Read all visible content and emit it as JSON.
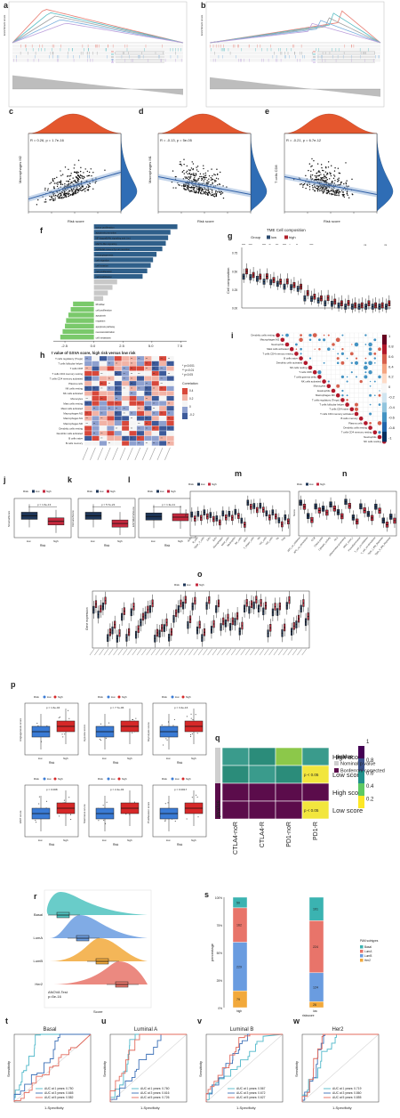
{
  "figure": {
    "panel_letters": {
      "a": "a",
      "b": "b",
      "c": "c",
      "d": "d",
      "e": "e",
      "f": "f",
      "g": "g",
      "h": "h",
      "i": "i",
      "j": "j",
      "k": "k",
      "l": "l",
      "m": "m",
      "n": "n",
      "o": "o",
      "p": "p",
      "q": "q",
      "r": "r",
      "s": "s",
      "t": "t",
      "u": "u",
      "v": "v",
      "w": "w"
    }
  },
  "chart_data": [
    {
      "id": "a",
      "type": "line",
      "title": "",
      "ylabel": "Enrichment score",
      "series_colors": [
        "#e87d72",
        "#56bcc2",
        "#a0a0a0",
        "#7ab0dd",
        "#bca0dc"
      ],
      "pathways_count": 5
    },
    {
      "id": "b",
      "type": "line",
      "title": "",
      "ylabel": "Enrichment score",
      "series_colors": [
        "#e87d72",
        "#56bcc2",
        "#a0a0a0",
        "#7ab0dd",
        "#bca0dc"
      ],
      "pathways_count": 5
    },
    {
      "id": "c",
      "type": "scatter",
      "annotation": "R = 0.26, p = 1.7e-16",
      "xlabel": "Risk score",
      "ylabel": "Macrophages M2",
      "trend": "positive",
      "xlim": [
        -3,
        4
      ],
      "ylim": [
        0,
        1
      ]
    },
    {
      "id": "d",
      "type": "scatter",
      "annotation": "R = -0.13, p = 5e-05",
      "xlabel": "Risk score",
      "ylabel": "Macrophages M1",
      "trend": "negative",
      "xlim": [
        -3,
        4
      ],
      "ylim": [
        0,
        1
      ]
    },
    {
      "id": "e",
      "type": "scatter",
      "annotation": "R = -0.21, p = 6.7e-12",
      "xlabel": "Risk score",
      "ylabel": "T cells CD8",
      "trend": "negative",
      "xlim": [
        -3,
        4
      ],
      "ylim": [
        0,
        1
      ]
    },
    {
      "id": "f",
      "type": "bar",
      "xlabel": "t value of GSVA score, high risk versus low risk",
      "xticks": [
        "-2.5",
        "0.0",
        "2.5",
        "5.0",
        "7.5"
      ],
      "xlim": [
        -3.5,
        8
      ],
      "categories": [
        "tumor proliferation",
        "apoptosis promotion",
        "NF-kappaB/Akt signaling and (i.e.)",
        "MET/c-Met signaling",
        "epithelial-mesenchymal transition",
        "neoangiogenesis",
        "cell migration",
        "cell invasion",
        "cell proliferation",
        "cell stabilization",
        "",
        "",
        "",
        "",
        "Rho/Rac",
        "cell proliferation",
        "apoptosis",
        "migration",
        "apoptosis pathway",
        "neovascularization",
        "cell metastasis"
      ],
      "values": [
        7.2,
        6.6,
        6.4,
        6.2,
        5.9,
        5.4,
        5.1,
        4.9,
        4.6,
        4.2,
        2.0,
        1.6,
        1.2,
        0.8,
        -1.8,
        -2.0,
        -2.2,
        -2.4,
        -2.5,
        -2.7,
        -2.9
      ],
      "bar_colors": {
        "up": "#2f5f8a",
        "neutral": "#c8c8c8",
        "down": "#7ac96b"
      }
    },
    {
      "id": "g",
      "type": "bar",
      "title": "TME Cell composition",
      "legend_title": "Group",
      "legend": [
        "low",
        "high"
      ],
      "colors": [
        "#2b4a6f",
        "#b0202a"
      ],
      "ylabel": "Cell composition",
      "yticks": [
        "0.00",
        "0.25",
        "0.50",
        "0.75"
      ],
      "categories_count": 22,
      "signif": [
        "****",
        "****",
        "",
        "****",
        "**",
        "***",
        "****",
        "*",
        "**",
        "",
        "****",
        "",
        "",
        "",
        "",
        "",
        "",
        "",
        "ns",
        "",
        "",
        "ns"
      ]
    },
    {
      "id": "h",
      "type": "heatmap",
      "rows": [
        "T cells regulatory (Tregs)",
        "T cells follicular helper",
        "T cells CD8",
        "T cells CD4 memory resting",
        "T cells CD4 memory activated",
        "Plasma cells",
        "NK cells resting",
        "NK cells activated",
        "Monocytes",
        "Mast cells resting",
        "Mast cells activated",
        "Macrophages M2",
        "Macrophages M1",
        "Macrophages M0",
        "Dendritic cells resting",
        "Dendritic cells activated",
        "B cells naive",
        "B cells memory"
      ],
      "cols_count": 12,
      "legend_title": "Correlation",
      "legend_ticks": [
        "0.4",
        "0.2",
        "0",
        "-0.2"
      ],
      "sig_legend": [
        "* p<0.001",
        "** p<0.01",
        "* p<0.05"
      ]
    },
    {
      "id": "i",
      "type": "heatmap",
      "labels": [
        "Dendritic cells resting",
        "Macrophages M2",
        "Neutrophils",
        "Mast cells activated",
        "T cells CD4 memory resting",
        "B cells naive",
        "Dendritic cells activated",
        "NK cells resting",
        "T cells CD8",
        "T cells gamma delta",
        "NK cells activated",
        "Monocytes",
        "Eosinophils",
        "Macrophages M0",
        "T cells regulatory (Tregs)",
        "T cells follicular helper",
        "T cells CD4 naive",
        "T cells CD4 memory activated",
        "B cells memory",
        "Plasma cells",
        "Dendritic cells resting",
        "T cells CD4 memory resting",
        "Neutrophils",
        "NK cells resting"
      ],
      "colorbar": [
        "1",
        "0.8",
        "0.6",
        "0.4",
        "0.2",
        "0",
        "-0.2",
        "-0.4",
        "-0.6",
        "-0.8",
        "-1"
      ]
    },
    {
      "id": "j",
      "type": "bar",
      "legend_title": "Risk",
      "legend": [
        "low",
        "high"
      ],
      "colors": [
        "#1d3557",
        "#c5283d"
      ],
      "categories": [
        "low",
        "high"
      ],
      "xlabel": "Risk",
      "ylabel": "StromalScore",
      "pvalue": "1.6e-13",
      "medians": [
        0.62,
        0.46
      ]
    },
    {
      "id": "k",
      "type": "bar",
      "legend_title": "Risk",
      "legend": [
        "low",
        "high"
      ],
      "colors": [
        "#1d3557",
        "#c5283d"
      ],
      "categories": [
        "low",
        "high"
      ],
      "xlabel": "Risk",
      "ylabel": "ImmuneScore",
      "pvalue": "5.7e-22",
      "medians": [
        0.62,
        0.4
      ]
    },
    {
      "id": "l",
      "type": "bar",
      "legend_title": "Risk",
      "legend": [
        "low",
        "high"
      ],
      "colors": [
        "#1d3557",
        "#c5283d"
      ],
      "categories": [
        "low",
        "high"
      ],
      "xlabel": "Risk",
      "ylabel": "ESTIMATEScore",
      "pvalue": "1.3e-11",
      "medians": [
        0.6,
        0.58
      ]
    },
    {
      "id": "m",
      "type": "bar",
      "legend_title": "Risk",
      "legend": [
        "low",
        "high"
      ],
      "colors": [
        "#1d3557",
        "#c5283d"
      ],
      "ylabel": "Score",
      "categories": [
        "aDCs",
        "B_cells",
        "CD8+_T_cells",
        "DCs",
        "iDCs",
        "Macrophages",
        "Mast_cells",
        "Neutrophils",
        "NK_cells",
        "pDCs",
        "T_helper_cells",
        "Tfh",
        "Th1_cells",
        "Th2_cells",
        "TIL",
        "Treg"
      ]
    },
    {
      "id": "n",
      "type": "bar",
      "legend_title": "Risk",
      "legend": [
        "low",
        "high"
      ],
      "colors": [
        "#1d3557",
        "#c5283d"
      ],
      "ylabel": "Score",
      "categories": [
        "APC_co_inhibition",
        "APC_co_stimulation",
        "CCR",
        "Check-point",
        "Cytolytic_activity",
        "HLA",
        "Inflammation-promoting",
        "MHC_class_I",
        "Parainflammation",
        "T_cell_co-inhibition",
        "T_cell_co-stimulation",
        "Type_I_IFN_Reponse",
        "Type_II_IFN_Reponse"
      ]
    },
    {
      "id": "o",
      "type": "bar",
      "legend_title": "Risk",
      "legend": [
        "low",
        "high"
      ],
      "colors": [
        "#1d3557",
        "#c5283d"
      ],
      "ylabel": "Gene expression",
      "categories_count": 46
    },
    {
      "id": "p",
      "type": "bar",
      "subpanels": [
        {
          "ylabel": "Angiogenesis score",
          "pvalue": "1.6e-04"
        },
        {
          "ylabel": "Hypoxia score",
          "pvalue": "7.7e-06"
        },
        {
          "ylabel": "Glycolysis score",
          "pvalue": "3.4e-16"
        },
        {
          "ylabel": "EMT score",
          "pvalue": "0.008"
        },
        {
          "ylabel": "Stemness score",
          "pvalue": "2.4e-03"
        },
        {
          "ylabel": "Proliferation score",
          "pvalue": "0.0017"
        }
      ],
      "legend_title": "Risk",
      "legend": [
        "low",
        "high"
      ],
      "colors": [
        "#3a7bd5",
        "#d62828"
      ],
      "categories": [
        "low",
        "high"
      ],
      "xlabel": "Risk"
    },
    {
      "id": "q",
      "type": "heatmap",
      "cols": [
        "CTLA4-noR",
        "CTLA4-R",
        "PD1-noR",
        "PD1-R"
      ],
      "rows": [
        "High score",
        "Low score",
        "High score",
        "Low score"
      ],
      "left_label": "pvalue",
      "cell_text": "p < 0.05",
      "legend_title": "pvalue",
      "legend_items": [
        "Nominal p value",
        "Bonferroni corrected"
      ],
      "legend_item_colors": [
        "#cfcfcf",
        "#5b0c4b"
      ],
      "colorbar_ticks": [
        "1",
        "0.8",
        "0.6",
        "0.4",
        "0.2"
      ]
    },
    {
      "id": "r",
      "type": "area",
      "categories": [
        "Basal",
        "LumA",
        "LumB",
        "Her2"
      ],
      "colors": [
        "#4fc3c0",
        "#6a9ce0",
        "#f2a93b",
        "#e8746a"
      ],
      "xlabel": "Score",
      "annotation_lines": [
        "ANOVA Test",
        "p=5e-16"
      ]
    },
    {
      "id": "s",
      "type": "bar",
      "ylabel": "percentage",
      "xlabel": "riskscore",
      "yticks": [
        "100%",
        "75%",
        "50%",
        "25%",
        "0%"
      ],
      "categories": [
        "high",
        "low"
      ],
      "legend_title": "PAM subtypes",
      "legend": [
        "Basal",
        "LumA",
        "LumB",
        "Her2"
      ],
      "colors": [
        "#3bb3b1",
        "#e8746a",
        "#6a9ce0",
        "#f2a93b"
      ],
      "series": [
        {
          "name": "Basal",
          "values": [
            50,
            101
          ]
        },
        {
          "name": "LumA",
          "values": [
            162,
            224
          ]
        },
        {
          "name": "LumB",
          "values": [
            229,
            124
          ]
        },
        {
          "name": "Her2",
          "values": [
            79,
            26
          ]
        }
      ]
    },
    {
      "id": "t",
      "type": "line",
      "title": "Basal",
      "xlabel": "1-Specificity",
      "ylabel": "Sensitivity",
      "legend": [
        "AUC at 1 years: 0.750",
        "AUC at 3 years: 0.665",
        "AUC at 5 years: 0.582"
      ],
      "colors": [
        "#4fb8c9",
        "#3b6fb6",
        "#e36b5e"
      ]
    },
    {
      "id": "u",
      "type": "line",
      "title": "Luminal A",
      "xlabel": "1-Specificity",
      "ylabel": "Sensitivity",
      "legend": [
        "AUC at 1 years: 0.760",
        "AUC at 3 years: 0.616",
        "AUC at 5 years: 0.726"
      ],
      "colors": [
        "#4fb8c9",
        "#3b6fb6",
        "#e36b5e"
      ]
    },
    {
      "id": "v",
      "type": "line",
      "title": "Luminal B",
      "xlabel": "1-Specificity",
      "ylabel": "Sensitivity",
      "legend": [
        "AUC at 1 years: 0.567",
        "AUC at 3 years: 0.672",
        "AUC at 5 years: 0.627"
      ],
      "colors": [
        "#4fb8c9",
        "#3b6fb6",
        "#e36b5e"
      ]
    },
    {
      "id": "w",
      "type": "line",
      "title": "Her2",
      "xlabel": "1-Specificity",
      "ylabel": "Sensitivity",
      "legend": [
        "AUC at 1 years: 0.719",
        "AUC at 3 years: 0.860",
        "AUC at 5 years: 0.855"
      ],
      "colors": [
        "#4fb8c9",
        "#3b6fb6",
        "#e36b5e"
      ]
    }
  ]
}
